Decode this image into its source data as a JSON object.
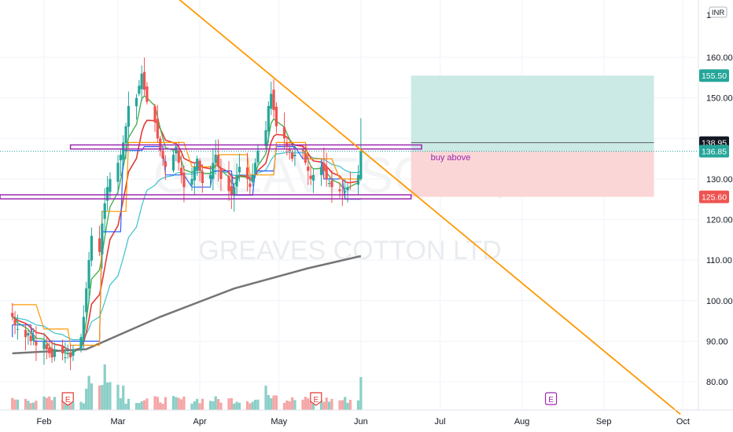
{
  "currency": "INR",
  "watermark": {
    "name": "GREAVES COTTON LTD",
    "ticker": "GREAVESCOT, 1D"
  },
  "annotation": "buy above",
  "colors": {
    "up": "#26a69a",
    "down": "#ef5350",
    "up_vol": "#89cfc7",
    "down_vol": "#f5a5a5",
    "trendline": "#ff9800",
    "zone_border": "#9c27b0",
    "target_zone": "#cbeae6",
    "stop_zone": "#fbd6d6",
    "ema_fast": "#4caf50",
    "ema_mid": "#e53935",
    "ema_slow": "#3cc0d0",
    "ma_long": "#757575",
    "step_blue": "#2962ff",
    "step_orange": "#ff9800"
  },
  "price_axis": {
    "labels": [
      "80.00",
      "90.00",
      "100.00",
      "110.00",
      "120.00",
      "130.00",
      "150.00",
      "160.00"
    ],
    "top_label": "1",
    "tags": [
      {
        "label": "155.50",
        "value": 155.5,
        "color": "#26a69a"
      },
      {
        "label": "138.95",
        "value": 138.95,
        "color": "#131722"
      },
      {
        "label": "136.85",
        "value": 136.85,
        "color": "#26a69a"
      },
      {
        "label": "125.60",
        "value": 125.6,
        "color": "#ef5350"
      }
    ]
  },
  "time_axis": {
    "labels": [
      "Feb",
      "Mar",
      "Apr",
      "May",
      "Jun",
      "Jul",
      "Aug",
      "Sep",
      "Oct"
    ]
  },
  "earnings_markers": [
    {
      "label": "E",
      "state": "past"
    },
    {
      "label": "E",
      "state": "past"
    },
    {
      "label": "E",
      "state": "future"
    }
  ],
  "chart_data": {
    "type": "candlestick",
    "symbol": "GREAVES COTTON LTD",
    "interval": "1D",
    "ylim": [
      72,
      170
    ],
    "y_scale": "linear",
    "x_range": [
      "2021-01-20",
      "2021-10-28"
    ],
    "months": [
      "Feb",
      "Mar",
      "Apr",
      "May",
      "Jun",
      "Jul",
      "Aug",
      "Sep",
      "Oct"
    ],
    "candles": {
      "start_date": "2021-01-20",
      "close": [
        96,
        94,
        93,
        91,
        92,
        90,
        91,
        89,
        90,
        88,
        87,
        86,
        88,
        87,
        86,
        87,
        86,
        88,
        91,
        96,
        103,
        110,
        116,
        112,
        119,
        124,
        128,
        130,
        134,
        136,
        139,
        143,
        148,
        150,
        153,
        156,
        152,
        149,
        144,
        140,
        137,
        135,
        133,
        136,
        138,
        134,
        131,
        128,
        130,
        133,
        135,
        132,
        129,
        131,
        134,
        136,
        133,
        130,
        127,
        126,
        128,
        131,
        133,
        130,
        128,
        131,
        134,
        137,
        142,
        148,
        151,
        147,
        143,
        140,
        138,
        137,
        135,
        136,
        137,
        134,
        132,
        130,
        131,
        133,
        132,
        130,
        129,
        128,
        127,
        126,
        127,
        128,
        129,
        131,
        137
      ],
      "high_low_range_note": "approximate wicks drawn around each candle"
    },
    "volume": {
      "peaks": [
        "Feb end",
        "mid May",
        "early Jun"
      ],
      "scale": "relative"
    },
    "moving_averages": [
      {
        "name": "EMA fast",
        "color": "#4caf50"
      },
      {
        "name": "EMA mid",
        "color": "#e53935"
      },
      {
        "name": "EMA slow",
        "color": "#3cc0d0"
      },
      {
        "name": "MA long",
        "color": "#757575",
        "points": [
          [
            0,
            87
          ],
          [
            20,
            88
          ],
          [
            40,
            96
          ],
          [
            60,
            103
          ],
          [
            80,
            108
          ],
          [
            95,
            111
          ]
        ]
      }
    ],
    "levels": {
      "upper_zone": [
        138.4,
        137.4
      ],
      "lower_zone": [
        126.1,
        125.1
      ],
      "target": 155.5,
      "entry": 136.85,
      "stop": 125.6,
      "last_close": 136.85,
      "prev_close": 138.95
    },
    "trendline": {
      "from": [
        "2021-02-23",
        190
      ],
      "to": [
        "2021-09-30",
        72
      ]
    },
    "earnings_dates": [
      "2021-02-10",
      "2021-05-15",
      "2021-08-12"
    ]
  }
}
